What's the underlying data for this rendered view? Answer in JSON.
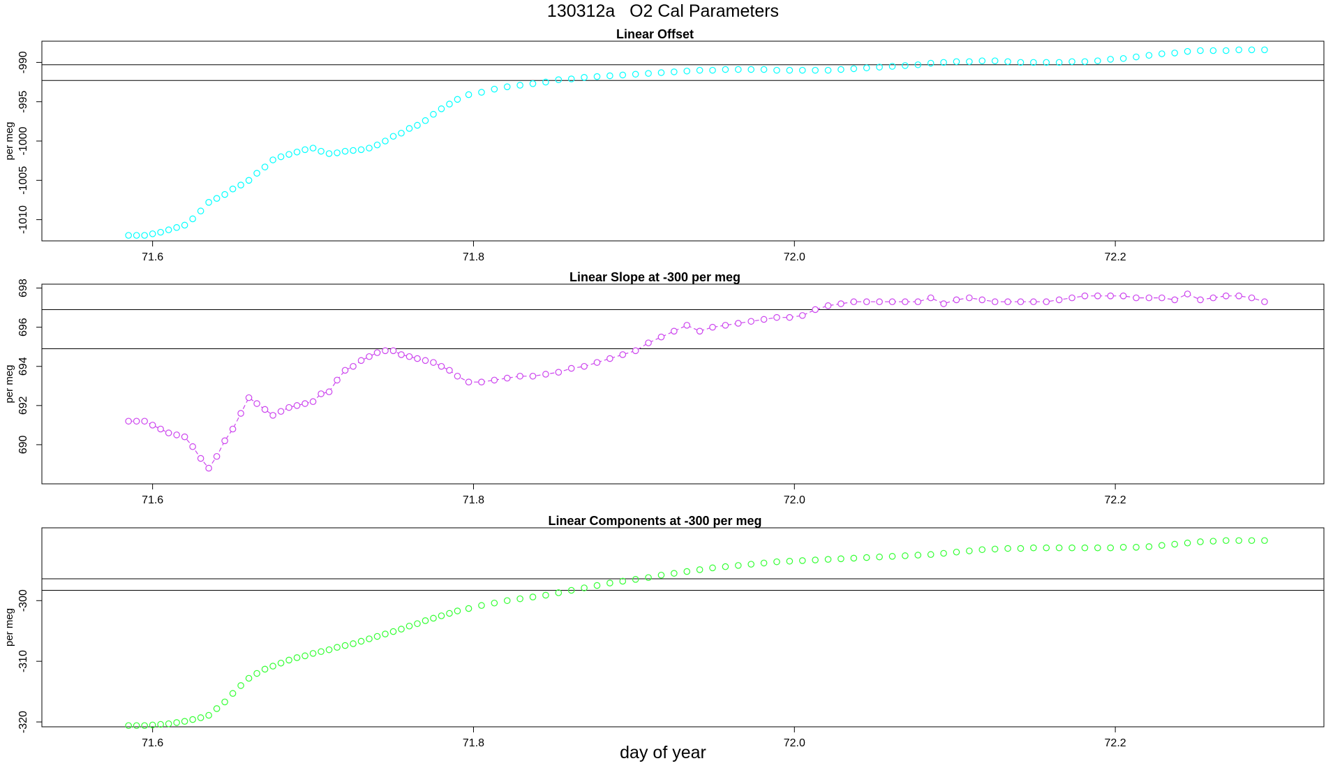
{
  "title": "130312a   O2 Cal Parameters",
  "xlabel": "day of year",
  "chart_data": [
    {
      "type": "scatter",
      "title": "Linear Offset",
      "ylabel": "per meg",
      "color": "#00ffff",
      "line": false,
      "xlim": [
        71.531,
        72.33
      ],
      "ylim": [
        -1012.7,
        -987.3
      ],
      "xticks": [
        "71.6",
        "71.8",
        "72.0",
        "72.2"
      ],
      "yticks": [
        "-990",
        "-995",
        "-1000",
        "-1005",
        "-1010"
      ],
      "hlines": [
        -990.3,
        -992.3
      ],
      "x": [
        71.585,
        71.59,
        71.595,
        71.6,
        71.605,
        71.61,
        71.615,
        71.62,
        71.625,
        71.63,
        71.635,
        71.64,
        71.645,
        71.65,
        71.655,
        71.66,
        71.665,
        71.67,
        71.675,
        71.68,
        71.685,
        71.69,
        71.695,
        71.7,
        71.705,
        71.71,
        71.715,
        71.72,
        71.725,
        71.73,
        71.735,
        71.74,
        71.745,
        71.75,
        71.755,
        71.76,
        71.765,
        71.77,
        71.775,
        71.78,
        71.785,
        71.79,
        71.797,
        71.805,
        71.813,
        71.821,
        71.829,
        71.837,
        71.845,
        71.853,
        71.861,
        71.869,
        71.877,
        71.885,
        71.893,
        71.901,
        71.909,
        71.917,
        71.925,
        71.933,
        71.941,
        71.949,
        71.957,
        71.965,
        71.973,
        71.981,
        71.989,
        71.997,
        72.005,
        72.013,
        72.021,
        72.029,
        72.037,
        72.045,
        72.053,
        72.061,
        72.069,
        72.077,
        72.085,
        72.093,
        72.101,
        72.109,
        72.117,
        72.125,
        72.133,
        72.141,
        72.149,
        72.157,
        72.165,
        72.173,
        72.181,
        72.189,
        72.197,
        72.205,
        72.213,
        72.221,
        72.229,
        72.237,
        72.245,
        72.253,
        72.261,
        72.269,
        72.277,
        72.285,
        72.293
      ],
      "y": [
        -1012.0,
        -1012.0,
        -1012.0,
        -1011.8,
        -1011.6,
        -1011.3,
        -1011.0,
        -1010.7,
        -1009.9,
        -1008.9,
        -1007.8,
        -1007.3,
        -1006.8,
        -1006.1,
        -1005.6,
        -1005.0,
        -1004.1,
        -1003.3,
        -1002.4,
        -1002.0,
        -1001.7,
        -1001.4,
        -1001.1,
        -1000.9,
        -1001.3,
        -1001.6,
        -1001.5,
        -1001.3,
        -1001.2,
        -1001.1,
        -1000.9,
        -1000.5,
        -1000.0,
        -999.4,
        -999.0,
        -998.4,
        -998.0,
        -997.4,
        -996.6,
        -995.9,
        -995.3,
        -994.7,
        -994.1,
        -993.8,
        -993.4,
        -993.1,
        -992.9,
        -992.7,
        -992.5,
        -992.2,
        -992.1,
        -991.9,
        -991.8,
        -991.7,
        -991.6,
        -991.5,
        -991.4,
        -991.3,
        -991.2,
        -991.1,
        -991.0,
        -991.0,
        -990.9,
        -990.9,
        -990.9,
        -990.9,
        -991.0,
        -991.0,
        -991.0,
        -991.0,
        -991.0,
        -990.9,
        -990.8,
        -990.7,
        -990.6,
        -990.5,
        -990.4,
        -990.3,
        -990.1,
        -990.0,
        -989.9,
        -989.9,
        -989.8,
        -989.8,
        -989.9,
        -990.0,
        -990.0,
        -990.0,
        -990.0,
        -989.9,
        -989.9,
        -989.8,
        -989.6,
        -989.5,
        -989.3,
        -989.1,
        -988.9,
        -988.8,
        -988.6,
        -988.5,
        -988.5,
        -988.5,
        -988.4,
        -988.4,
        -988.4
      ]
    },
    {
      "type": "scatter",
      "title": "Linear Slope at -300 per meg",
      "ylabel": "per meg",
      "color": "#cc44ee",
      "line": true,
      "xlim": [
        71.531,
        72.33
      ],
      "ylim": [
        688.0,
        698.2
      ],
      "xticks": [
        "71.6",
        "71.8",
        "72.0",
        "72.2"
      ],
      "yticks": [
        "690",
        "692",
        "694",
        "696",
        "698"
      ],
      "hlines": [
        696.9,
        694.9
      ],
      "x": [
        71.585,
        71.59,
        71.595,
        71.6,
        71.605,
        71.61,
        71.615,
        71.62,
        71.625,
        71.63,
        71.635,
        71.64,
        71.645,
        71.65,
        71.655,
        71.66,
        71.665,
        71.67,
        71.675,
        71.68,
        71.685,
        71.69,
        71.695,
        71.7,
        71.705,
        71.71,
        71.715,
        71.72,
        71.725,
        71.73,
        71.735,
        71.74,
        71.745,
        71.75,
        71.755,
        71.76,
        71.765,
        71.77,
        71.775,
        71.78,
        71.785,
        71.79,
        71.797,
        71.805,
        71.813,
        71.821,
        71.829,
        71.837,
        71.845,
        71.853,
        71.861,
        71.869,
        71.877,
        71.885,
        71.893,
        71.901,
        71.909,
        71.917,
        71.925,
        71.933,
        71.941,
        71.949,
        71.957,
        71.965,
        71.973,
        71.981,
        71.989,
        71.997,
        72.005,
        72.013,
        72.021,
        72.029,
        72.037,
        72.045,
        72.053,
        72.061,
        72.069,
        72.077,
        72.085,
        72.093,
        72.101,
        72.109,
        72.117,
        72.125,
        72.133,
        72.141,
        72.149,
        72.157,
        72.165,
        72.173,
        72.181,
        72.189,
        72.197,
        72.205,
        72.213,
        72.221,
        72.229,
        72.237,
        72.245,
        72.253,
        72.261,
        72.269,
        72.277,
        72.285,
        72.293
      ],
      "y": [
        691.2,
        691.2,
        691.2,
        691.0,
        690.8,
        690.6,
        690.5,
        690.4,
        689.9,
        689.3,
        688.8,
        689.4,
        690.2,
        690.8,
        691.6,
        692.4,
        692.1,
        691.8,
        691.5,
        691.7,
        691.9,
        692.0,
        692.1,
        692.2,
        692.6,
        692.7,
        693.3,
        693.8,
        694.0,
        694.3,
        694.5,
        694.7,
        694.8,
        694.8,
        694.6,
        694.5,
        694.4,
        694.3,
        694.2,
        694.0,
        693.8,
        693.5,
        693.2,
        693.2,
        693.3,
        693.4,
        693.5,
        693.5,
        693.6,
        693.7,
        693.9,
        694.0,
        694.2,
        694.4,
        694.6,
        694.8,
        695.2,
        695.5,
        695.8,
        696.1,
        695.8,
        696.0,
        696.1,
        696.2,
        696.3,
        696.4,
        696.5,
        696.5,
        696.6,
        696.9,
        697.1,
        697.2,
        697.3,
        697.3,
        697.3,
        697.3,
        697.3,
        697.3,
        697.5,
        697.2,
        697.4,
        697.5,
        697.4,
        697.3,
        697.3,
        697.3,
        697.3,
        697.3,
        697.4,
        697.5,
        697.6,
        697.6,
        697.6,
        697.6,
        697.5,
        697.5,
        697.5,
        697.4,
        697.7,
        697.4,
        697.5,
        697.6,
        697.6,
        697.5,
        697.3
      ]
    },
    {
      "type": "scatter",
      "title": "Linear Components at -300 per meg",
      "ylabel": "per meg",
      "color": "#33ff33",
      "line": false,
      "xlim": [
        71.531,
        72.33
      ],
      "ylim": [
        -320.8,
        -288.0
      ],
      "xticks": [
        "71.6",
        "71.8",
        "72.0",
        "72.2"
      ],
      "yticks": [
        "-300",
        "-310",
        "-320"
      ],
      "hlines": [
        -296.4,
        -298.3
      ],
      "x": [
        71.585,
        71.59,
        71.595,
        71.6,
        71.605,
        71.61,
        71.615,
        71.62,
        71.625,
        71.63,
        71.635,
        71.64,
        71.645,
        71.65,
        71.655,
        71.66,
        71.665,
        71.67,
        71.675,
        71.68,
        71.685,
        71.69,
        71.695,
        71.7,
        71.705,
        71.71,
        71.715,
        71.72,
        71.725,
        71.73,
        71.735,
        71.74,
        71.745,
        71.75,
        71.755,
        71.76,
        71.765,
        71.77,
        71.775,
        71.78,
        71.785,
        71.79,
        71.797,
        71.805,
        71.813,
        71.821,
        71.829,
        71.837,
        71.845,
        71.853,
        71.861,
        71.869,
        71.877,
        71.885,
        71.893,
        71.901,
        71.909,
        71.917,
        71.925,
        71.933,
        71.941,
        71.949,
        71.957,
        71.965,
        71.973,
        71.981,
        71.989,
        71.997,
        72.005,
        72.013,
        72.021,
        72.029,
        72.037,
        72.045,
        72.053,
        72.061,
        72.069,
        72.077,
        72.085,
        72.093,
        72.101,
        72.109,
        72.117,
        72.125,
        72.133,
        72.141,
        72.149,
        72.157,
        72.165,
        72.173,
        72.181,
        72.189,
        72.197,
        72.205,
        72.213,
        72.221,
        72.229,
        72.237,
        72.245,
        72.253,
        72.261,
        72.269,
        72.277,
        72.285,
        72.293
      ],
      "y": [
        -320.6,
        -320.6,
        -320.6,
        -320.5,
        -320.4,
        -320.3,
        -320.1,
        -319.9,
        -319.6,
        -319.3,
        -318.9,
        -317.8,
        -316.7,
        -315.3,
        -314.0,
        -312.8,
        -312.0,
        -311.3,
        -310.8,
        -310.3,
        -309.8,
        -309.4,
        -309.1,
        -308.7,
        -308.4,
        -308.1,
        -307.7,
        -307.4,
        -307.1,
        -306.7,
        -306.3,
        -305.9,
        -305.5,
        -305.1,
        -304.7,
        -304.2,
        -303.8,
        -303.3,
        -302.9,
        -302.5,
        -302.1,
        -301.7,
        -301.3,
        -300.8,
        -300.4,
        -300.0,
        -299.7,
        -299.4,
        -299.1,
        -298.7,
        -298.3,
        -297.9,
        -297.5,
        -297.1,
        -296.8,
        -296.5,
        -296.2,
        -295.8,
        -295.5,
        -295.2,
        -294.9,
        -294.6,
        -294.4,
        -294.2,
        -294.0,
        -293.8,
        -293.6,
        -293.5,
        -293.4,
        -293.3,
        -293.2,
        -293.1,
        -293.0,
        -292.9,
        -292.8,
        -292.7,
        -292.6,
        -292.5,
        -292.4,
        -292.2,
        -292.0,
        -291.8,
        -291.6,
        -291.5,
        -291.4,
        -291.4,
        -291.3,
        -291.3,
        -291.3,
        -291.3,
        -291.3,
        -291.3,
        -291.3,
        -291.2,
        -291.2,
        -291.1,
        -290.9,
        -290.7,
        -290.5,
        -290.3,
        -290.2,
        -290.1,
        -290.1,
        -290.1,
        -290.1
      ]
    }
  ]
}
